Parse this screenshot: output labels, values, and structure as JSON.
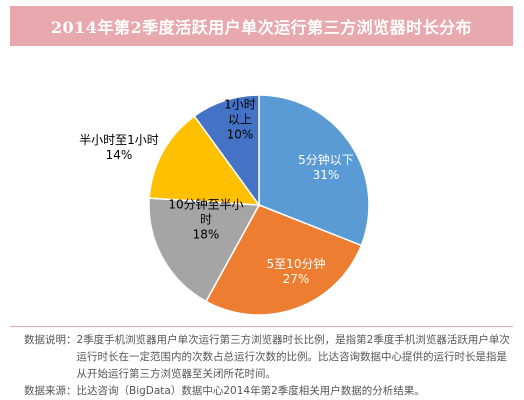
{
  "chart_data": {
    "type": "pie",
    "title": "2014年第2季度活跃用户单次运行第三方浏览器时长分布",
    "categories": [
      "5分钟以下",
      "5至10分钟",
      "10分钟至半小时",
      "半小时至1小时",
      "1小时以上"
    ],
    "values": [
      31,
      27,
      18,
      14,
      10
    ],
    "value_labels": [
      "31%",
      "27%",
      "18%",
      "14%",
      "10%"
    ],
    "colors": [
      "#5b9bd5",
      "#ed7d31",
      "#a5a5a5",
      "#ffc000",
      "#4472c4"
    ],
    "start_angle_deg": 0,
    "direction": "clockwise",
    "legend": "none",
    "labels": [
      {
        "lines": [
          "5分钟以下",
          "31%"
        ],
        "color": "#ffffff"
      },
      {
        "lines": [
          "5至10分钟",
          "27%"
        ],
        "color": "#ffffff"
      },
      {
        "lines": [
          "10分钟至半小",
          "时",
          "18%"
        ],
        "color": "#000000"
      },
      {
        "lines": [
          "半小时至1小时",
          "14%"
        ],
        "color": "#000000"
      },
      {
        "lines": [
          "1小时",
          "以上",
          "10%"
        ],
        "color": "#000000"
      }
    ]
  },
  "notes": {
    "explain_head": "数据说明：",
    "explain_body": "2季度手机浏览器用户单次运行第三方浏览器时长比例，是指第2季度手机浏览器活跃用户单次运行时长在一定范围内的次数占总运行次数的比例。比达咨询数据中心提供的运行时长是指是从开始运行第三方浏览器至关闭所花时间。",
    "source_head": "数据来源：",
    "source_body": "比达咨询（BigData）数据中心2014年第2季度相关用户数据的分析结果。"
  }
}
